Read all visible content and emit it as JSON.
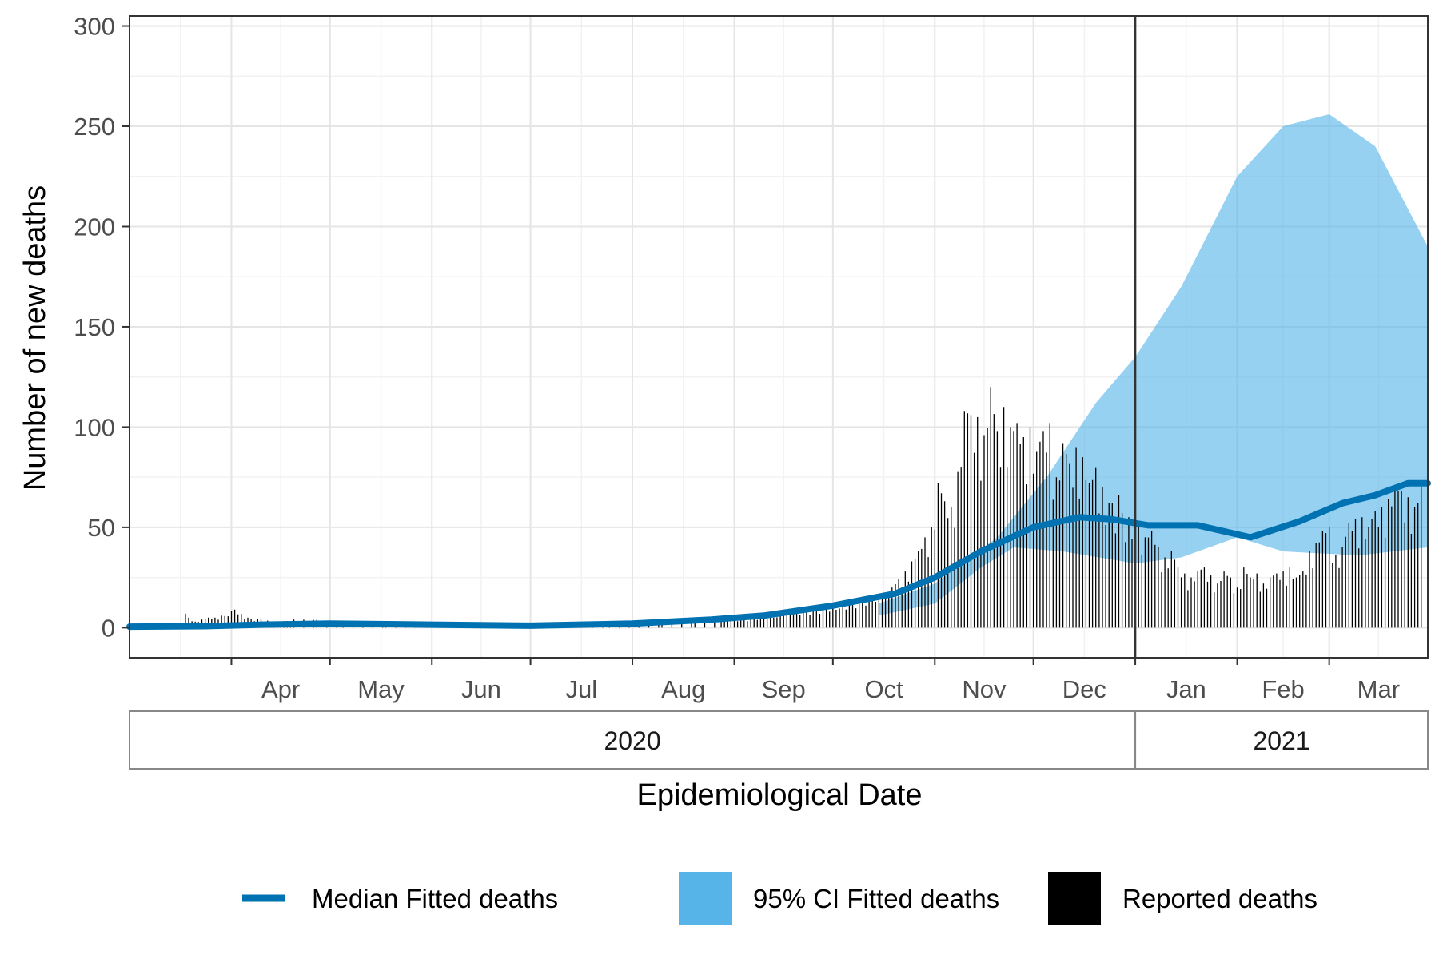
{
  "chart_data": {
    "type": "line",
    "title": "",
    "xlabel": "Epidemiological Date",
    "ylabel": "Number of new deaths",
    "ylim": [
      -15,
      305
    ],
    "xlim": [
      "2020-03-01",
      "2021-03-31"
    ],
    "y_ticks": [
      0,
      50,
      100,
      150,
      200,
      250,
      300
    ],
    "y_tick_labels": [
      "0",
      "50",
      "100",
      "150",
      "200",
      "250",
      "300"
    ],
    "month_ticks": [
      {
        "date": "2020-04-01",
        "label": "Apr"
      },
      {
        "date": "2020-05-01",
        "label": "May"
      },
      {
        "date": "2020-06-01",
        "label": "Jun"
      },
      {
        "date": "2020-07-01",
        "label": "Jul"
      },
      {
        "date": "2020-08-01",
        "label": "Aug"
      },
      {
        "date": "2020-09-01",
        "label": "Sep"
      },
      {
        "date": "2020-10-01",
        "label": "Oct"
      },
      {
        "date": "2020-11-01",
        "label": "Nov"
      },
      {
        "date": "2020-12-01",
        "label": "Dec"
      },
      {
        "date": "2021-01-01",
        "label": "Jan"
      },
      {
        "date": "2021-02-01",
        "label": "Feb"
      },
      {
        "date": "2021-03-01",
        "label": "Mar"
      }
    ],
    "year_strips": [
      {
        "label": "2020",
        "start": "2020-03-01",
        "end": "2021-01-01"
      },
      {
        "label": "2021",
        "start": "2021-01-01",
        "end": "2021-03-31"
      }
    ],
    "vline_date": "2021-01-01",
    "grid": true,
    "legend_position": "bottom",
    "colors": {
      "median": "#0072b2",
      "ci": "#56b4e9",
      "reported": "#000000",
      "grid_major": "#e5e5e5",
      "grid_minor": "#f2f2f2",
      "panel_border": "#333333",
      "strip_border": "#888888"
    },
    "median": {
      "name": "Median Fitted deaths",
      "points": [
        [
          "2020-03-01",
          0.5
        ],
        [
          "2020-03-25",
          0.8
        ],
        [
          "2020-04-10",
          1.5
        ],
        [
          "2020-05-01",
          2
        ],
        [
          "2020-06-01",
          1.5
        ],
        [
          "2020-07-01",
          1
        ],
        [
          "2020-08-01",
          2
        ],
        [
          "2020-08-25",
          4
        ],
        [
          "2020-09-10",
          6
        ],
        [
          "2020-10-01",
          11
        ],
        [
          "2020-10-20",
          17
        ],
        [
          "2020-11-01",
          25
        ],
        [
          "2020-11-15",
          38
        ],
        [
          "2020-12-01",
          50
        ],
        [
          "2020-12-15",
          55
        ],
        [
          "2020-12-25",
          54
        ],
        [
          "2021-01-05",
          51
        ],
        [
          "2021-01-20",
          51
        ],
        [
          "2021-02-05",
          45
        ],
        [
          "2021-02-20",
          53
        ],
        [
          "2021-03-05",
          62
        ],
        [
          "2021-03-15",
          66
        ],
        [
          "2021-03-25",
          72
        ],
        [
          "2021-03-31",
          72
        ]
      ]
    },
    "ci": {
      "name": "95% CI Fitted deaths",
      "upper": [
        [
          "2020-10-15",
          12
        ],
        [
          "2020-11-01",
          22
        ],
        [
          "2020-11-20",
          45
        ],
        [
          "2020-12-05",
          75
        ],
        [
          "2020-12-20",
          112
        ],
        [
          "2021-01-01",
          135
        ],
        [
          "2021-01-15",
          170
        ],
        [
          "2021-02-01",
          225
        ],
        [
          "2021-02-15",
          250
        ],
        [
          "2021-03-01",
          256
        ],
        [
          "2021-03-15",
          240
        ],
        [
          "2021-03-31",
          190
        ]
      ],
      "lower": [
        [
          "2021-03-31",
          40
        ],
        [
          "2021-03-10",
          36
        ],
        [
          "2021-02-15",
          38
        ],
        [
          "2021-02-01",
          45
        ],
        [
          "2021-01-15",
          35
        ],
        [
          "2021-01-01",
          32
        ],
        [
          "2020-12-10",
          38
        ],
        [
          "2020-11-25",
          40
        ],
        [
          "2020-11-15",
          30
        ],
        [
          "2020-11-01",
          12
        ],
        [
          "2020-10-15",
          6
        ]
      ]
    },
    "reported": {
      "name": "Reported deaths",
      "values": [
        [
          "2020-03-18",
          7
        ],
        [
          "2020-03-21",
          3
        ],
        [
          "2020-03-23",
          4
        ],
        [
          "2020-03-25",
          5
        ],
        [
          "2020-03-27",
          5
        ],
        [
          "2020-03-29",
          6
        ],
        [
          "2020-04-02",
          9
        ],
        [
          "2020-04-06",
          5
        ],
        [
          "2020-04-10",
          4
        ],
        [
          "2020-04-14",
          3
        ],
        [
          "2020-04-20",
          4
        ],
        [
          "2020-04-27",
          4
        ],
        [
          "2020-05-05",
          3
        ],
        [
          "2020-05-18",
          3
        ],
        [
          "2020-06-10",
          2
        ],
        [
          "2020-07-05",
          2
        ],
        [
          "2020-07-25",
          3
        ],
        [
          "2020-08-10",
          4
        ],
        [
          "2020-08-20",
          4
        ],
        [
          "2020-08-28",
          5
        ],
        [
          "2020-09-03",
          4
        ],
        [
          "2020-09-07",
          5
        ],
        [
          "2020-09-10",
          6
        ],
        [
          "2020-09-13",
          5
        ],
        [
          "2020-09-16",
          8
        ],
        [
          "2020-09-19",
          7
        ],
        [
          "2020-09-22",
          8
        ],
        [
          "2020-09-25",
          9
        ],
        [
          "2020-09-28",
          10
        ],
        [
          "2020-10-01",
          11
        ],
        [
          "2020-10-04",
          12
        ],
        [
          "2020-10-07",
          13
        ],
        [
          "2020-10-10",
          14
        ],
        [
          "2020-10-13",
          15
        ],
        [
          "2020-10-16",
          16
        ],
        [
          "2020-10-19",
          20
        ],
        [
          "2020-10-21",
          24
        ],
        [
          "2020-10-23",
          28
        ],
        [
          "2020-10-25",
          33
        ],
        [
          "2020-10-27",
          38
        ],
        [
          "2020-10-29",
          45
        ],
        [
          "2020-10-31",
          50
        ],
        [
          "2020-11-02",
          72
        ],
        [
          "2020-11-04",
          63
        ],
        [
          "2020-11-06",
          60
        ],
        [
          "2020-11-08",
          78
        ],
        [
          "2020-11-10",
          108
        ],
        [
          "2020-11-12",
          106
        ],
        [
          "2020-11-14",
          105
        ],
        [
          "2020-11-16",
          96
        ],
        [
          "2020-11-18",
          120
        ],
        [
          "2020-11-20",
          98
        ],
        [
          "2020-11-22",
          110
        ],
        [
          "2020-11-24",
          100
        ],
        [
          "2020-11-26",
          102
        ],
        [
          "2020-11-28",
          95
        ],
        [
          "2020-11-30",
          100
        ],
        [
          "2020-12-02",
          88
        ],
        [
          "2020-12-04",
          98
        ],
        [
          "2020-12-06",
          102
        ],
        [
          "2020-12-08",
          75
        ],
        [
          "2020-12-10",
          92
        ],
        [
          "2020-12-12",
          82
        ],
        [
          "2020-12-14",
          90
        ],
        [
          "2020-12-16",
          85
        ],
        [
          "2020-12-18",
          72
        ],
        [
          "2020-12-20",
          80
        ],
        [
          "2020-12-22",
          70
        ],
        [
          "2020-12-24",
          62
        ],
        [
          "2020-12-27",
          66
        ],
        [
          "2020-12-30",
          55
        ],
        [
          "2021-01-02",
          50
        ],
        [
          "2021-01-04",
          45
        ],
        [
          "2021-01-06",
          48
        ],
        [
          "2021-01-08",
          40
        ],
        [
          "2021-01-10",
          35
        ],
        [
          "2021-01-12",
          38
        ],
        [
          "2021-01-14",
          30
        ],
        [
          "2021-01-16",
          27
        ],
        [
          "2021-01-18",
          25
        ],
        [
          "2021-01-20",
          28
        ],
        [
          "2021-01-22",
          30
        ],
        [
          "2021-01-24",
          26
        ],
        [
          "2021-01-26",
          22
        ],
        [
          "2021-01-28",
          28
        ],
        [
          "2021-01-30",
          25
        ],
        [
          "2021-02-01",
          20
        ],
        [
          "2021-02-03",
          30
        ],
        [
          "2021-02-05",
          25
        ],
        [
          "2021-02-07",
          27
        ],
        [
          "2021-02-09",
          22
        ],
        [
          "2021-02-11",
          25
        ],
        [
          "2021-02-13",
          27
        ],
        [
          "2021-02-15",
          28
        ],
        [
          "2021-02-17",
          30
        ],
        [
          "2021-02-19",
          25
        ],
        [
          "2021-02-21",
          28
        ],
        [
          "2021-02-23",
          38
        ],
        [
          "2021-02-25",
          42
        ],
        [
          "2021-02-27",
          48
        ],
        [
          "2021-03-01",
          50
        ],
        [
          "2021-03-03",
          36
        ],
        [
          "2021-03-05",
          40
        ],
        [
          "2021-03-07",
          52
        ],
        [
          "2021-03-09",
          54
        ],
        [
          "2021-03-11",
          55
        ],
        [
          "2021-03-13",
          50
        ],
        [
          "2021-03-15",
          58
        ],
        [
          "2021-03-17",
          60
        ],
        [
          "2021-03-19",
          64
        ],
        [
          "2021-03-21",
          70
        ],
        [
          "2021-03-23",
          68
        ],
        [
          "2021-03-25",
          65
        ],
        [
          "2021-03-27",
          60
        ],
        [
          "2021-03-29",
          70
        ]
      ]
    }
  }
}
